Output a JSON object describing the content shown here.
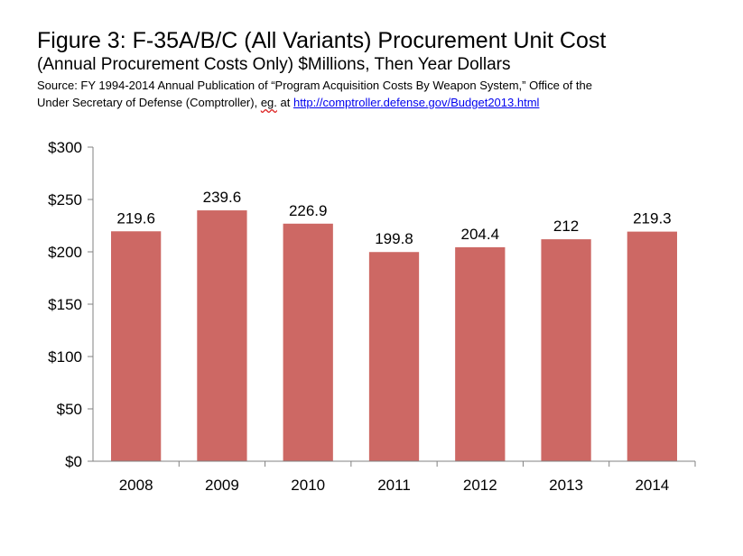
{
  "header": {
    "title": "Figure 3: F-35A/B/C (All Variants) Procurement Unit Cost",
    "subtitle": "(Annual Procurement Costs Only) $Millions, Then Year Dollars",
    "source_line1": "Source: FY 1994-2014 Annual Publication of “Program Acquisition Costs By Weapon System,” Office of the",
    "source_line2_prefix": "Under Secretary of Defense (Comptroller), ",
    "source_eg": "eg.",
    "source_at": " at ",
    "source_link": "http://comptroller.defense.gov/Budget2013.html"
  },
  "colors": {
    "bar": "#cd6864",
    "axis": "#808080"
  },
  "chart_data": {
    "type": "bar",
    "title": "Figure 3: F-35A/B/C (All Variants) Procurement Unit Cost",
    "categories": [
      "2008",
      "2009",
      "2010",
      "2011",
      "2012",
      "2013",
      "2014"
    ],
    "values": [
      219.6,
      239.6,
      226.9,
      199.8,
      204.4,
      212,
      219.3
    ],
    "value_labels": [
      "219.6",
      "239.6",
      "226.9",
      "199.8",
      "204.4",
      "212",
      "219.3"
    ],
    "xlabel": "",
    "ylabel": "",
    "ylim": [
      0,
      300
    ],
    "yticks": [
      0,
      50,
      100,
      150,
      200,
      250,
      300
    ],
    "ytick_labels": [
      "$0",
      "$50",
      "$100",
      "$150",
      "$200",
      "$250",
      "$300"
    ],
    "grid": false,
    "legend": "none"
  }
}
